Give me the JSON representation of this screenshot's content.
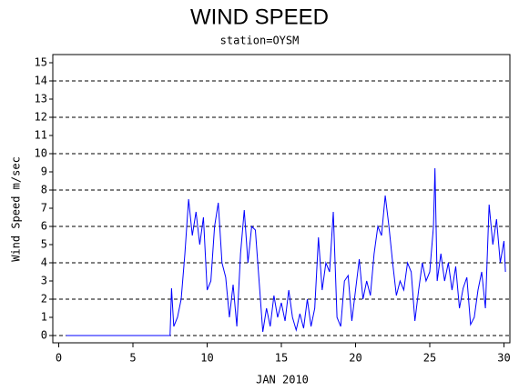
{
  "chart_data": {
    "type": "line",
    "title": "WIND SPEED",
    "subtitle": "station=OYSM",
    "x_label": "JAN 2010",
    "y_label": "Wind Speed m/sec",
    "xlim": [
      -0.4,
      30.4
    ],
    "xticks": [
      0,
      5,
      10,
      15,
      20,
      25,
      30
    ],
    "ylim": [
      -0.4,
      15.45
    ],
    "yticks": [
      0,
      1,
      2,
      3,
      4,
      5,
      6,
      7,
      8,
      9,
      10,
      11,
      12,
      13,
      14,
      15
    ],
    "grid_lines": [
      0,
      2,
      4,
      6,
      8,
      10,
      12,
      14
    ],
    "series": [
      {
        "name": "Wind Speed",
        "color": "#0000ff",
        "x": [
          0.5,
          7.5,
          7.6,
          7.75,
          8.0,
          8.25,
          8.5,
          8.75,
          9.0,
          9.25,
          9.5,
          9.75,
          10.0,
          10.25,
          10.5,
          10.75,
          11.0,
          11.25,
          11.5,
          11.75,
          12.0,
          12.25,
          12.5,
          12.75,
          13.0,
          13.25,
          13.5,
          13.75,
          14.0,
          14.25,
          14.5,
          14.75,
          15.0,
          15.25,
          15.5,
          15.75,
          16.0,
          16.25,
          16.5,
          16.75,
          17.0,
          17.25,
          17.5,
          17.75,
          18.0,
          18.25,
          18.5,
          18.75,
          19.0,
          19.25,
          19.5,
          19.75,
          20.0,
          20.25,
          20.5,
          20.75,
          21.0,
          21.25,
          21.5,
          21.75,
          22.0,
          22.25,
          22.5,
          22.75,
          23.0,
          23.25,
          23.5,
          23.75,
          24.0,
          24.25,
          24.5,
          24.75,
          25.0,
          25.25,
          25.35,
          25.5,
          25.75,
          26.0,
          26.25,
          26.5,
          26.75,
          27.0,
          27.25,
          27.5,
          27.75,
          28.0,
          28.25,
          28.5,
          28.75,
          29.0,
          29.25,
          29.5,
          29.75,
          30.0,
          30.1
        ],
        "values": [
          0,
          0,
          2.6,
          0.5,
          1.0,
          2.0,
          4.5,
          7.5,
          5.5,
          6.8,
          5.0,
          6.5,
          2.5,
          3.0,
          6.0,
          7.3,
          4.0,
          3.2,
          1.0,
          2.8,
          0.5,
          4.5,
          6.9,
          4.0,
          6.0,
          5.8,
          3.0,
          0.2,
          1.5,
          0.5,
          2.2,
          1.0,
          1.8,
          0.8,
          2.5,
          1.0,
          0.3,
          1.2,
          0.4,
          2.0,
          0.5,
          1.5,
          5.4,
          2.5,
          4.0,
          3.5,
          6.8,
          1.0,
          0.5,
          3.0,
          3.3,
          0.8,
          2.5,
          4.2,
          2.0,
          3.0,
          2.2,
          4.5,
          6.0,
          5.5,
          7.7,
          6.0,
          4.0,
          2.2,
          3.0,
          2.5,
          4.0,
          3.5,
          0.8,
          2.5,
          4.0,
          3.0,
          3.5,
          6.0,
          9.2,
          3.0,
          4.5,
          3.0,
          4.0,
          2.5,
          3.8,
          1.5,
          2.6,
          3.2,
          0.6,
          1.0,
          2.5,
          3.5,
          1.5,
          7.2,
          5.0,
          6.4,
          4.0,
          5.2,
          3.5
        ]
      }
    ]
  }
}
